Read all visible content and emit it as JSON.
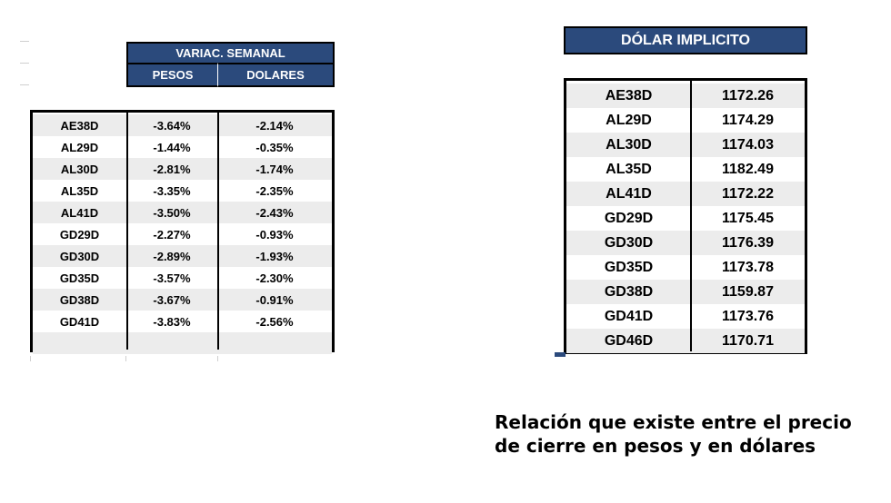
{
  "left_table": {
    "title": "VARIAC. SEMANAL",
    "col_pesos": "PESOS",
    "col_dolares": "DOLARES",
    "rows": [
      {
        "ticker": "AE38D",
        "pesos": "-3.64%",
        "dolares": "-2.14%"
      },
      {
        "ticker": "AL29D",
        "pesos": "-1.44%",
        "dolares": "-0.35%"
      },
      {
        "ticker": "AL30D",
        "pesos": "-2.81%",
        "dolares": "-1.74%"
      },
      {
        "ticker": "AL35D",
        "pesos": "-3.35%",
        "dolares": "-2.35%"
      },
      {
        "ticker": "AL41D",
        "pesos": "-3.50%",
        "dolares": "-2.43%"
      },
      {
        "ticker": "GD29D",
        "pesos": "-2.27%",
        "dolares": "-0.93%"
      },
      {
        "ticker": "GD30D",
        "pesos": "-2.89%",
        "dolares": "-1.93%"
      },
      {
        "ticker": "GD35D",
        "pesos": "-3.57%",
        "dolares": "-2.30%"
      },
      {
        "ticker": "GD38D",
        "pesos": "-3.67%",
        "dolares": "-0.91%"
      },
      {
        "ticker": "GD41D",
        "pesos": "-3.83%",
        "dolares": "-2.56%"
      },
      {
        "ticker": "",
        "pesos": "",
        "dolares": ""
      }
    ]
  },
  "right_table": {
    "title": "DÓLAR IMPLICITO",
    "rows": [
      {
        "ticker": "AE38D",
        "value": "1172.26"
      },
      {
        "ticker": "AL29D",
        "value": "1174.29"
      },
      {
        "ticker": "AL30D",
        "value": "1174.03"
      },
      {
        "ticker": "AL35D",
        "value": "1182.49"
      },
      {
        "ticker": "AL41D",
        "value": "1172.22"
      },
      {
        "ticker": "GD29D",
        "value": "1175.45"
      },
      {
        "ticker": "GD30D",
        "value": "1176.39"
      },
      {
        "ticker": "GD35D",
        "value": "1173.78"
      },
      {
        "ticker": "GD38D",
        "value": "1159.87"
      },
      {
        "ticker": "GD41D",
        "value": "1173.76"
      },
      {
        "ticker": "GD46D",
        "value": "1170.71"
      }
    ]
  },
  "caption": {
    "line1": "Relación que existe entre el precio",
    "line2": "de cierre en pesos y en dólares"
  },
  "colors": {
    "header_bg": "#2b4a7c",
    "header_text": "#ffffff",
    "alt_row_bg": "#ececec"
  }
}
